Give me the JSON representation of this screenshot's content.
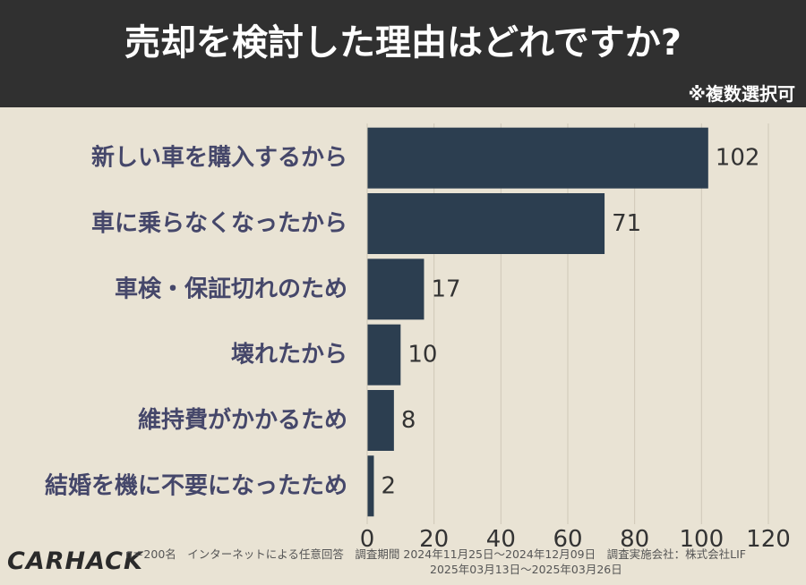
{
  "header": {
    "title": "売却を検討した理由はどれですか?",
    "note": "※複数選択可"
  },
  "footer": {
    "survey_line1": "n＝200名　インターネットによる任意回答　調査期間 2024年11月25日～2024年12月09日　調査実施会社：株式会社LIF",
    "survey_line2": "2025年03月13日～2025年03月26日",
    "logo": "CARHACK"
  },
  "colors": {
    "bar": "#2c3e50",
    "label": "#45476a",
    "value": "#333333",
    "grid": "#cfc8b8"
  },
  "chart_data": {
    "type": "bar",
    "orientation": "horizontal",
    "title": "売却を検討した理由はどれですか?",
    "categories": [
      "新しい車を購入するから",
      "車に乗らなくなったから",
      "車検・保証切れのため",
      "壊れたから",
      "維持費がかかるため",
      "結婚を機に不要になったため"
    ],
    "values": [
      102,
      71,
      17,
      10,
      8,
      2
    ],
    "xlim": [
      0,
      120
    ],
    "xticks": [
      0,
      20,
      40,
      60,
      80,
      100,
      120
    ],
    "grid": true
  }
}
